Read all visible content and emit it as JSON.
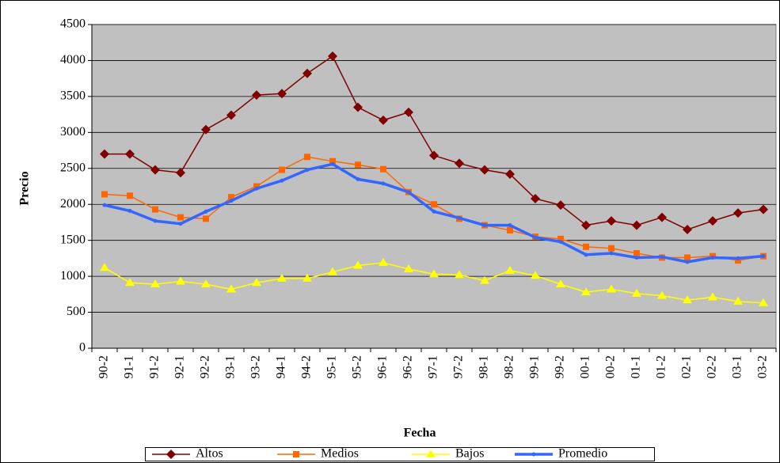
{
  "chart_data": {
    "type": "line",
    "x_label": "Fecha",
    "y_label": "Precio",
    "categories": [
      "90-2",
      "91-1",
      "91-2",
      "92-1",
      "92-2",
      "93-1",
      "93-2",
      "94-1",
      "94-2",
      "95-1",
      "95-2",
      "96-1",
      "96-2",
      "97-1",
      "97-2",
      "98-1",
      "98-2",
      "99-1",
      "99-2",
      "00-1",
      "00-2",
      "01-1",
      "01-2",
      "02-1",
      "02-2",
      "03-1",
      "03-2"
    ],
    "series": [
      {
        "name": "Altos",
        "color": "#800000",
        "marker": "diamond",
        "line_width": 1.5,
        "values": [
          2700,
          2700,
          2480,
          2440,
          3040,
          3240,
          3520,
          3540,
          3820,
          4060,
          3350,
          3170,
          3280,
          2680,
          2570,
          2480,
          2420,
          2080,
          1990,
          1710,
          1770,
          1710,
          1820,
          1650,
          1770,
          1880,
          1930
        ]
      },
      {
        "name": "Medios",
        "color": "#ff6600",
        "marker": "square",
        "line_width": 1.5,
        "values": [
          2140,
          2120,
          1930,
          1820,
          1800,
          2100,
          2250,
          2480,
          2660,
          2600,
          2550,
          2490,
          2170,
          2000,
          1800,
          1710,
          1640,
          1550,
          1520,
          1410,
          1390,
          1320,
          1260,
          1260,
          1280,
          1220,
          1280
        ]
      },
      {
        "name": "Bajos",
        "color": "#ffff00",
        "marker": "triangle",
        "line_width": 1.5,
        "values": [
          1120,
          910,
          890,
          930,
          890,
          820,
          910,
          970,
          970,
          1060,
          1150,
          1190,
          1100,
          1030,
          1020,
          940,
          1080,
          1010,
          890,
          780,
          820,
          760,
          730,
          670,
          710,
          650,
          630
        ]
      },
      {
        "name": "Promedio",
        "color": "#3366ff",
        "marker": "dot",
        "line_width": 3.5,
        "values": [
          1990,
          1910,
          1770,
          1730,
          1900,
          2050,
          2220,
          2330,
          2480,
          2560,
          2350,
          2290,
          2170,
          1900,
          1810,
          1710,
          1710,
          1540,
          1480,
          1300,
          1320,
          1260,
          1270,
          1200,
          1260,
          1250,
          1280
        ]
      }
    ],
    "ylim": [
      0,
      4500
    ],
    "yticks": [
      0,
      500,
      1000,
      1500,
      2000,
      2500,
      3000,
      3500,
      4000,
      4500
    ],
    "grid": true,
    "plot_background": "#c0c0c0",
    "legend": "bottom"
  }
}
